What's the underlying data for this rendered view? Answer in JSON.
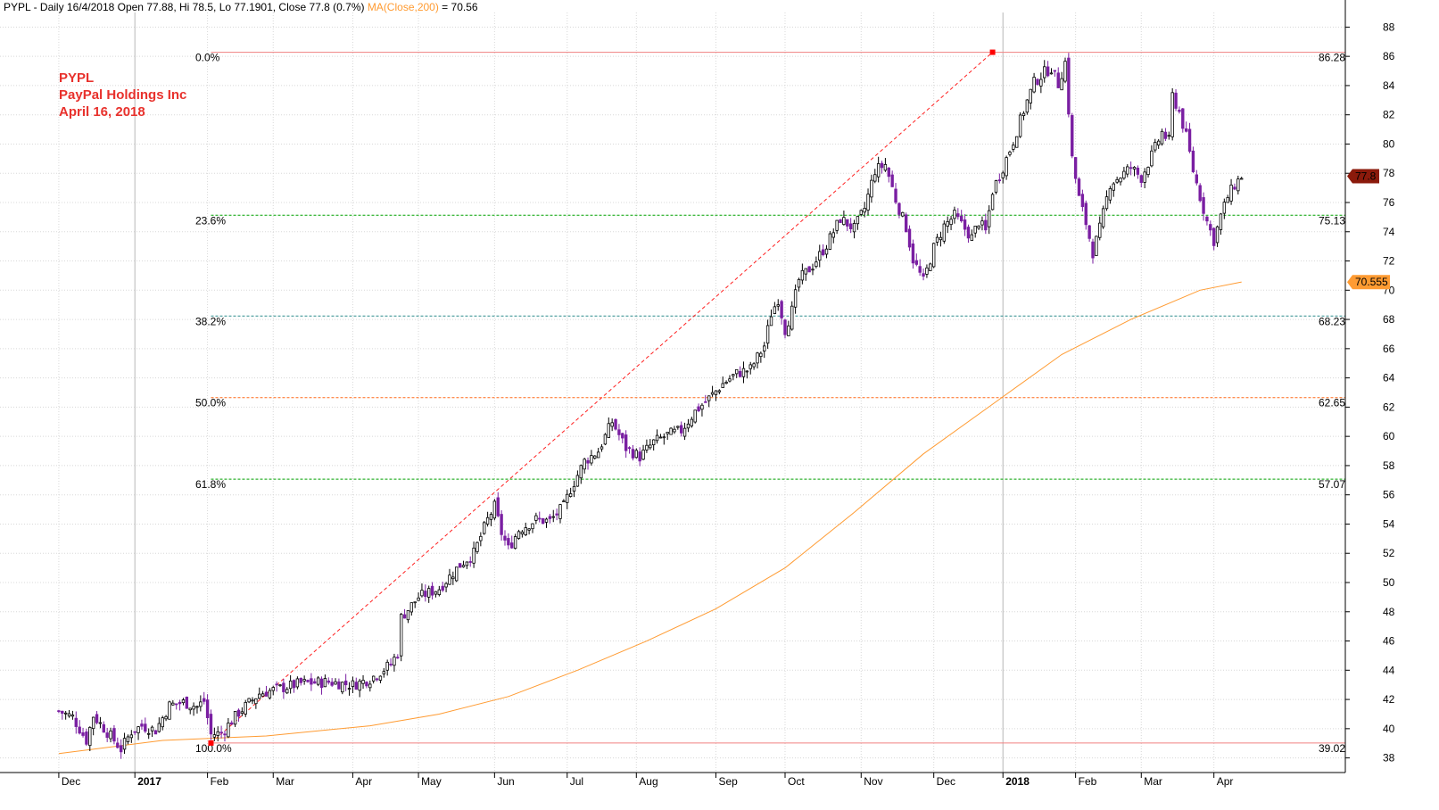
{
  "header": {
    "prefix": "PYPL - Daily 16/4/2018 Open 77.88, Hi 78.5, Lo 77.1901, Close 77.8 (0.7%) ",
    "ma_label": "MA(Close,200)",
    "ma_suffix": " = 70.56"
  },
  "annotation": {
    "line1": "PYPL",
    "line2": "PayPal Holdings Inc",
    "line3": "April 16, 2018"
  },
  "colors": {
    "up": "#000000",
    "down": "#7a1fa2",
    "ma": "#ff9b32",
    "fib_green": "#00a000",
    "fib_orange": "#ff6a1a",
    "fib_red": "#f08080",
    "price_tag": "#8b1a0b",
    "ma_tag": "#ff9b32",
    "grid": "#d8d8d8"
  },
  "chart_data": {
    "type": "candlestick",
    "symbol": "PYPL",
    "ylim": [
      37,
      89
    ],
    "y_ticks": [
      38,
      40,
      42,
      44,
      46,
      48,
      50,
      52,
      54,
      56,
      58,
      60,
      62,
      64,
      66,
      68,
      70,
      72,
      74,
      76,
      78,
      80,
      82,
      84,
      86,
      88
    ],
    "x_labels": [
      {
        "label": "Dec",
        "day": 0
      },
      {
        "label": "2017",
        "day": 22,
        "bold": true
      },
      {
        "label": "Feb",
        "day": 43
      },
      {
        "label": "Mar",
        "day": 62
      },
      {
        "label": "Apr",
        "day": 85
      },
      {
        "label": "May",
        "day": 104
      },
      {
        "label": "Jun",
        "day": 126
      },
      {
        "label": "Jul",
        "day": 147
      },
      {
        "label": "Aug",
        "day": 167
      },
      {
        "label": "Sep",
        "day": 190
      },
      {
        "label": "Oct",
        "day": 210
      },
      {
        "label": "Nov",
        "day": 232
      },
      {
        "label": "Dec",
        "day": 253
      },
      {
        "label": "2018",
        "day": 273,
        "bold": true
      },
      {
        "label": "Feb",
        "day": 294
      },
      {
        "label": "Mar",
        "day": 313
      },
      {
        "label": "Apr",
        "day": 334
      }
    ],
    "price_path": [
      [
        0,
        41.2
      ],
      [
        4,
        40.8
      ],
      [
        8,
        39.2
      ],
      [
        10,
        40.9
      ],
      [
        16,
        39.2
      ],
      [
        18,
        38.6
      ],
      [
        21,
        39.8
      ],
      [
        24,
        40.2
      ],
      [
        28,
        39.9
      ],
      [
        32,
        41.6
      ],
      [
        36,
        41.8
      ],
      [
        40,
        41.5
      ],
      [
        42,
        41.9
      ],
      [
        44,
        39.6
      ],
      [
        47,
        39.7
      ],
      [
        52,
        41.1
      ],
      [
        58,
        42.4
      ],
      [
        63,
        42.7
      ],
      [
        70,
        43.1
      ],
      [
        78,
        43.2
      ],
      [
        85,
        43.0
      ],
      [
        90,
        43.4
      ],
      [
        96,
        44.4
      ],
      [
        98,
        45.2
      ],
      [
        99,
        47.6
      ],
      [
        104,
        49.0
      ],
      [
        110,
        49.6
      ],
      [
        116,
        51.2
      ],
      [
        120,
        52.0
      ],
      [
        124,
        54.3
      ],
      [
        126,
        55.2
      ],
      [
        128,
        53.4
      ],
      [
        130,
        52.3
      ],
      [
        133,
        53.6
      ],
      [
        138,
        54.3
      ],
      [
        142,
        54.2
      ],
      [
        146,
        55.2
      ],
      [
        148,
        56.4
      ],
      [
        152,
        58.3
      ],
      [
        156,
        59.0
      ],
      [
        160,
        61.0
      ],
      [
        164,
        59.2
      ],
      [
        168,
        58.6
      ],
      [
        172,
        59.6
      ],
      [
        176,
        60.1
      ],
      [
        180,
        60.4
      ],
      [
        184,
        61.7
      ],
      [
        188,
        62.6
      ],
      [
        192,
        63.6
      ],
      [
        196,
        64.3
      ],
      [
        200,
        64.6
      ],
      [
        204,
        66.2
      ],
      [
        206,
        68.4
      ],
      [
        208,
        69.4
      ],
      [
        210,
        67.3
      ],
      [
        212,
        68.6
      ],
      [
        214,
        70.7
      ],
      [
        218,
        71.7
      ],
      [
        222,
        73.1
      ],
      [
        226,
        74.9
      ],
      [
        230,
        74.2
      ],
      [
        233,
        75.6
      ],
      [
        236,
        78.2
      ],
      [
        239,
        78.6
      ],
      [
        242,
        76.2
      ],
      [
        245,
        74.3
      ],
      [
        247,
        72.1
      ],
      [
        250,
        70.6
      ],
      [
        253,
        72.9
      ],
      [
        256,
        74.4
      ],
      [
        259,
        75.1
      ],
      [
        262,
        74.2
      ],
      [
        264,
        73.6
      ],
      [
        266,
        74.7
      ],
      [
        268,
        74.0
      ],
      [
        270,
        76.8
      ],
      [
        273,
        78.4
      ],
      [
        276,
        80.2
      ],
      [
        279,
        82.3
      ],
      [
        282,
        84.2
      ],
      [
        285,
        84.9
      ],
      [
        287,
        85.2
      ],
      [
        289,
        84.1
      ],
      [
        291,
        85.6
      ],
      [
        293,
        79.0
      ],
      [
        295,
        76.3
      ],
      [
        297,
        74.6
      ],
      [
        299,
        72.6
      ],
      [
        301,
        74.2
      ],
      [
        304,
        77.3
      ],
      [
        307,
        77.8
      ],
      [
        310,
        78.4
      ],
      [
        313,
        77.7
      ],
      [
        316,
        79.2
      ],
      [
        319,
        80.8
      ],
      [
        321,
        80.2
      ],
      [
        322,
        83.3
      ],
      [
        324,
        82.2
      ],
      [
        326,
        80.5
      ],
      [
        328,
        78.2
      ],
      [
        330,
        76.4
      ],
      [
        332,
        74.7
      ],
      [
        334,
        73.4
      ],
      [
        336,
        75.1
      ],
      [
        338,
        76.4
      ],
      [
        340,
        77.2
      ],
      [
        342,
        77.8
      ]
    ],
    "moving_average_200": [
      [
        0,
        38.3
      ],
      [
        30,
        39.2
      ],
      [
        60,
        39.5
      ],
      [
        90,
        40.2
      ],
      [
        110,
        41.0
      ],
      [
        130,
        42.2
      ],
      [
        150,
        44.0
      ],
      [
        170,
        46.0
      ],
      [
        190,
        48.2
      ],
      [
        210,
        51.0
      ],
      [
        230,
        54.8
      ],
      [
        250,
        58.8
      ],
      [
        270,
        62.2
      ],
      [
        290,
        65.6
      ],
      [
        310,
        68.0
      ],
      [
        330,
        70.0
      ],
      [
        342,
        70.56
      ]
    ],
    "fibonacci": {
      "start_day": 44,
      "start_price": 39.02,
      "end_day": 270,
      "end_price": 86.28,
      "levels": [
        {
          "ratio": "0.0%",
          "price": 86.28,
          "value_label": "86.28",
          "color": "red"
        },
        {
          "ratio": "23.6%",
          "price": 75.13,
          "value_label": "75.13",
          "color": "green"
        },
        {
          "ratio": "38.2%",
          "price": 68.23,
          "value_label": "68.23",
          "color": "teal"
        },
        {
          "ratio": "50.0%",
          "price": 62.65,
          "value_label": "62.65",
          "color": "orange"
        },
        {
          "ratio": "61.8%",
          "price": 57.07,
          "value_label": "57.07",
          "color": "green"
        },
        {
          "ratio": "100.0%",
          "price": 39.02,
          "value_label": "39.02",
          "color": "red"
        }
      ]
    },
    "last_close": {
      "label": "77.8",
      "price": 77.8
    },
    "ma_last": {
      "label": "70.555",
      "price": 70.555
    }
  }
}
